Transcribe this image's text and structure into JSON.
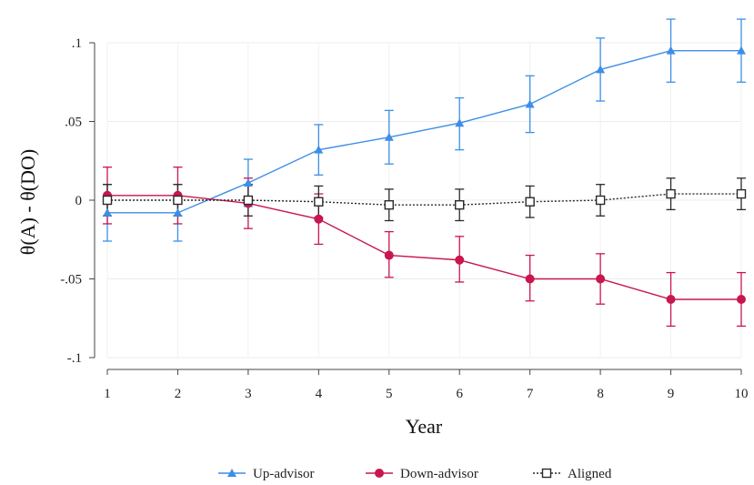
{
  "chart_data": {
    "type": "line",
    "xlabel": "Year",
    "ylabel": "θ(A) - θ(DO)",
    "xlim": [
      1,
      10
    ],
    "ylim": [
      -0.1,
      0.1
    ],
    "x": [
      1,
      2,
      3,
      4,
      5,
      6,
      7,
      8,
      9,
      10
    ],
    "x_ticks": [
      "1",
      "2",
      "3",
      "4",
      "5",
      "6",
      "7",
      "8",
      "9",
      "10"
    ],
    "y_ticks": [
      {
        "value": -0.1,
        "label": "-.1"
      },
      {
        "value": -0.05,
        "label": "-.05"
      },
      {
        "value": 0,
        "label": "0"
      },
      {
        "value": 0.05,
        "label": ".05"
      },
      {
        "value": 0.1,
        "label": ".1"
      }
    ],
    "grid": true,
    "legend_position": "bottom",
    "series": [
      {
        "name": "Up-advisor",
        "color": "#3d8ee8",
        "marker": "triangle",
        "line_style": "solid",
        "values": [
          -0.008,
          -0.008,
          0.011,
          0.032,
          0.04,
          0.049,
          0.061,
          0.083,
          0.095,
          0.095
        ],
        "ci_low": [
          -0.026,
          -0.026,
          -0.004,
          0.016,
          0.023,
          0.032,
          0.043,
          0.063,
          0.075,
          0.075
        ],
        "ci_high": [
          0.01,
          0.01,
          0.026,
          0.048,
          0.057,
          0.065,
          0.079,
          0.103,
          0.115,
          0.115
        ]
      },
      {
        "name": "Down-advisor",
        "color": "#c8164e",
        "marker": "circle",
        "line_style": "solid",
        "values": [
          0.003,
          0.003,
          -0.002,
          -0.012,
          -0.035,
          -0.038,
          -0.05,
          -0.05,
          -0.063,
          -0.063
        ],
        "ci_low": [
          -0.015,
          -0.015,
          -0.018,
          -0.028,
          -0.049,
          -0.052,
          -0.064,
          -0.066,
          -0.08,
          -0.08
        ],
        "ci_high": [
          0.021,
          0.021,
          0.014,
          0.004,
          -0.02,
          -0.023,
          -0.035,
          -0.034,
          -0.046,
          -0.046
        ]
      },
      {
        "name": "Aligned",
        "color": "#2a2a2a",
        "marker": "square-hollow",
        "line_style": "dotted",
        "values": [
          0.0,
          0.0,
          0.0,
          -0.001,
          -0.003,
          -0.003,
          -0.001,
          0.0,
          0.004,
          0.004
        ],
        "ci_low": [
          -0.01,
          -0.01,
          -0.01,
          -0.011,
          -0.013,
          -0.013,
          -0.011,
          -0.01,
          -0.006,
          -0.006
        ],
        "ci_high": [
          0.01,
          0.01,
          0.01,
          0.009,
          0.007,
          0.007,
          0.009,
          0.01,
          0.014,
          0.014
        ]
      }
    ]
  }
}
